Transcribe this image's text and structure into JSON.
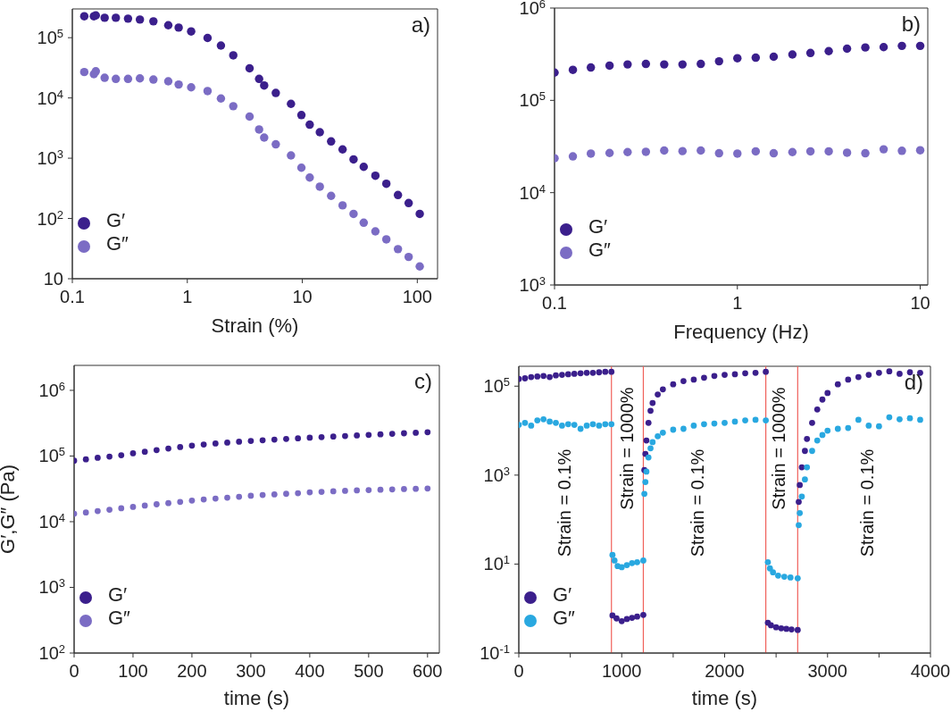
{
  "chart_data": [
    {
      "type": "scatter",
      "xlabel": "Strain (%)",
      "log": "xy",
      "marker": "circle",
      "legend": "bottom left",
      "annotations": [
        "a)"
      ],
      "xlim": [
        0.1,
        150
      ],
      "xticks": [
        0.1,
        1,
        10,
        100
      ],
      "ylim": [
        10,
        300000
      ],
      "yticks": [
        {
          "value": 10,
          "label": "10"
        },
        {
          "value": 100,
          "label": "10$^{2}$"
        },
        {
          "value": 1000,
          "label": "10$^{3}$"
        },
        {
          "value": 10000,
          "label": "10$^{4}$"
        },
        {
          "value": 100000,
          "label": "10$^{5}$"
        }
      ],
      "series": [
        {
          "name": "G′",
          "color": "#3b1f8c",
          "x": [
            0.127,
            0.154,
            0.16,
            0.191,
            0.239,
            0.305,
            0.387,
            0.507,
            0.683,
            0.841,
            1.08,
            1.5,
            1.96,
            2.51,
            3.48,
            4.21,
            4.66,
            5.88,
            7.97,
            9.82,
            11.6,
            14.2,
            17.8,
            22.4,
            27.9,
            34.2,
            43.2,
            53.8,
            67.9,
            84.1,
            105
          ],
          "values": [
            227000,
            227000,
            234000,
            214000,
            214000,
            207000,
            200000,
            187000,
            161000,
            147000,
            127000,
            99000,
            74000,
            51000,
            31000,
            20700,
            16100,
            12100,
            7970,
            5200,
            3600,
            2700,
            1900,
            1400,
            955,
            720,
            512,
            377,
            245,
            180,
            119
          ]
        },
        {
          "name": "G″",
          "color": "#7b6cc4",
          "x": [
            0.127,
            0.154,
            0.16,
            0.191,
            0.239,
            0.305,
            0.387,
            0.507,
            0.683,
            0.841,
            1.08,
            1.5,
            1.96,
            2.51,
            3.48,
            4.21,
            4.66,
            5.88,
            7.97,
            9.82,
            11.6,
            14.2,
            17.8,
            22.4,
            27.9,
            34.2,
            43.2,
            53.8,
            67.9,
            84.1,
            105
          ],
          "values": [
            26900,
            24800,
            27700,
            21600,
            20700,
            20700,
            21100,
            20200,
            18900,
            16700,
            15000,
            13000,
            9800,
            7300,
            4900,
            3000,
            2200,
            1700,
            1110,
            695,
            478,
            337,
            237,
            165,
            119,
            85,
            61,
            45,
            31,
            23,
            16
          ]
        }
      ]
    },
    {
      "type": "scatter",
      "xlabel": "Frequency (Hz)",
      "log": "xy",
      "marker": "circle",
      "legend": "bottom left",
      "annotations": [
        "b)"
      ],
      "xlim": [
        0.1,
        11
      ],
      "xticks": [
        0.1,
        1,
        10
      ],
      "ylim": [
        1000,
        1000000
      ],
      "yticks": [
        {
          "value": 1000,
          "label": "10$^{3}$"
        },
        {
          "value": 10000,
          "label": "10$^{4}$"
        },
        {
          "value": 100000,
          "label": "10$^{5}$"
        },
        {
          "value": 1000000,
          "label": "10$^{6}$"
        }
      ],
      "series": [
        {
          "name": "G′",
          "color": "#3b1f8c",
          "x": [
            0.1,
            0.126,
            0.158,
            0.2,
            0.251,
            0.316,
            0.398,
            0.501,
            0.631,
            0.794,
            1,
            1.26,
            1.58,
            2,
            2.51,
            3.16,
            3.98,
            5.01,
            6.31,
            7.94,
            10
          ],
          "values": [
            200000,
            214000,
            227000,
            238000,
            245000,
            248000,
            245000,
            245000,
            248000,
            265000,
            286000,
            290000,
            297000,
            314000,
            326000,
            341000,
            363000,
            374000,
            377000,
            389000,
            389000
          ]
        },
        {
          "name": "G″",
          "color": "#7b6cc4",
          "x": [
            0.1,
            0.126,
            0.158,
            0.2,
            0.251,
            0.316,
            0.398,
            0.501,
            0.631,
            0.794,
            1,
            1.26,
            1.58,
            2,
            2.51,
            3.16,
            3.98,
            5.01,
            6.31,
            7.94,
            10
          ],
          "values": [
            23600,
            24700,
            26500,
            26900,
            27500,
            27700,
            28600,
            28200,
            28600,
            26700,
            26500,
            28000,
            26700,
            27500,
            28000,
            28000,
            27100,
            26700,
            29500,
            28400,
            28800
          ]
        }
      ]
    },
    {
      "type": "scatter",
      "xlabel": "time (s)",
      "ylabel": "G′,G″ (Pa)",
      "log": "y",
      "marker": "circle",
      "legend": "bottom left",
      "annotations": [
        "c)"
      ],
      "xlim": [
        0,
        620
      ],
      "xticks": [
        0,
        100,
        200,
        300,
        400,
        500,
        600
      ],
      "ylim": [
        100,
        2400000
      ],
      "yticks": [
        {
          "value": 100,
          "label": "10$^{2}$"
        },
        {
          "value": 1000,
          "label": "10$^{3}$"
        },
        {
          "value": 10000,
          "label": "10$^{4}$"
        },
        {
          "value": 100000,
          "label": "10$^{5}$"
        },
        {
          "value": 1000000,
          "label": "10$^{6}$"
        }
      ],
      "series": [
        {
          "name": "G′",
          "color": "#3b1f8c",
          "x": [
            0,
            20,
            40,
            60,
            80,
            100,
            120,
            140,
            160,
            180,
            200,
            220,
            240,
            260,
            280,
            300,
            320,
            340,
            360,
            380,
            400,
            420,
            440,
            460,
            480,
            500,
            520,
            540,
            560,
            580,
            600
          ],
          "values": [
            85000,
            89000,
            94000,
            98000,
            103000,
            110000,
            116000,
            123000,
            130000,
            137000,
            144000,
            150000,
            155000,
            160000,
            165000,
            170000,
            174000,
            178000,
            182000,
            186000,
            190000,
            194000,
            198000,
            202000,
            206000,
            210000,
            214000,
            218000,
            222000,
            226000,
            230000
          ]
        },
        {
          "name": "G″",
          "color": "#7b6cc4",
          "x": [
            0,
            20,
            40,
            60,
            80,
            100,
            120,
            140,
            160,
            180,
            200,
            220,
            240,
            260,
            280,
            300,
            320,
            340,
            360,
            380,
            400,
            420,
            440,
            460,
            480,
            500,
            520,
            540,
            560,
            580,
            600
          ],
          "values": [
            13200,
            13800,
            14500,
            15200,
            16000,
            16800,
            17600,
            18400,
            19200,
            20000,
            21000,
            21800,
            22500,
            23200,
            24000,
            24800,
            25500,
            26000,
            26600,
            27200,
            28000,
            28500,
            29000,
            29500,
            30000,
            30300,
            30700,
            31000,
            31400,
            31700,
            32000
          ]
        }
      ]
    },
    {
      "type": "scatter",
      "xlabel": "time (s)",
      "log": "y",
      "marker": "circle",
      "legend": "bottom left",
      "annotations": [
        "d)",
        "Strain = 0.1%",
        "Strain = 1000%",
        "Strain = 0.1%",
        "Strain = 1000%",
        "Strain = 0.1%"
      ],
      "xlim": [
        0,
        4000
      ],
      "xticks": [
        0,
        {
          "value": 500,
          "label": null
        },
        1000,
        {
          "value": 1500,
          "label": null
        },
        2000,
        {
          "value": 2500,
          "label": null
        },
        3000,
        {
          "value": 3500,
          "label": null
        },
        4000
      ],
      "ylim": [
        0.1,
        280000
      ],
      "yticks": [
        {
          "value": 0.1,
          "label": "10$^{-1}$"
        },
        {
          "value": 10,
          "label": "10$^{1}$"
        },
        {
          "value": 1000,
          "label": "10$^{3}$"
        },
        {
          "value": 100000,
          "label": "10$^{5}$"
        }
      ],
      "ref_lines": [
        {
          "axis": "x",
          "value": 900,
          "color": "#f0605a"
        },
        {
          "axis": "x",
          "value": 1210,
          "color": "#f0605a"
        },
        {
          "axis": "x",
          "value": 2400,
          "color": "#f0605a"
        },
        {
          "axis": "x",
          "value": 2710,
          "color": "#f0605a"
        }
      ],
      "series": [
        {
          "name": "G′",
          "color": "#3b1f8c",
          "x": [
            0,
            60,
            120,
            180,
            240,
            300,
            360,
            420,
            480,
            540,
            600,
            660,
            720,
            780,
            840,
            900,
            910,
            950,
            1000,
            1050,
            1100,
            1150,
            1210,
            1220,
            1230,
            1240,
            1260,
            1280,
            1300,
            1350,
            1400,
            1500,
            1600,
            1700,
            1800,
            1900,
            2000,
            2100,
            2200,
            2300,
            2400,
            2420,
            2450,
            2500,
            2550,
            2600,
            2650,
            2710,
            2720,
            2730,
            2750,
            2780,
            2800,
            2850,
            2900,
            2950,
            3000,
            3100,
            3200,
            3300,
            3400,
            3500,
            3600,
            3700,
            3800,
            3900
          ],
          "values": [
            145000,
            150000,
            160000,
            165000,
            170000,
            160000,
            175000,
            180000,
            185000,
            190000,
            195000,
            200000,
            200000,
            205000,
            210000,
            210000,
            0.7,
            0.6,
            0.52,
            0.58,
            0.62,
            0.66,
            0.72,
            1300,
            3000,
            6000,
            15000,
            28000,
            42000,
            65000,
            85000,
            110000,
            130000,
            140000,
            155000,
            170000,
            180000,
            185000,
            195000,
            200000,
            210000,
            0.48,
            0.42,
            0.38,
            0.36,
            0.35,
            0.34,
            0.33,
            250,
            600,
            1500,
            3500,
            6500,
            15000,
            30000,
            50000,
            70000,
            110000,
            140000,
            160000,
            180000,
            200000,
            215000,
            190000,
            205000,
            200000
          ]
        },
        {
          "name": "G″",
          "color": "#29a8e0",
          "x": [
            0,
            60,
            120,
            180,
            240,
            300,
            360,
            420,
            480,
            540,
            600,
            660,
            720,
            780,
            840,
            900,
            910,
            930,
            960,
            1000,
            1050,
            1100,
            1150,
            1210,
            1220,
            1230,
            1240,
            1260,
            1280,
            1300,
            1350,
            1400,
            1500,
            1600,
            1700,
            1800,
            1900,
            2000,
            2100,
            2200,
            2300,
            2400,
            2420,
            2440,
            2470,
            2520,
            2580,
            2640,
            2710,
            2720,
            2730,
            2750,
            2780,
            2800,
            2850,
            2900,
            2950,
            3000,
            3100,
            3200,
            3300,
            3400,
            3500,
            3600,
            3700,
            3800,
            3900
          ],
          "values": [
            13500,
            15000,
            13000,
            17000,
            18000,
            16000,
            15000,
            13000,
            14000,
            13500,
            11000,
            13000,
            14000,
            13000,
            14000,
            14000,
            16,
            12,
            9,
            8.5,
            9.5,
            10.5,
            11,
            12,
            380,
            700,
            1200,
            2500,
            4000,
            5500,
            7500,
            9000,
            10500,
            11000,
            13000,
            14000,
            14500,
            15000,
            16000,
            17000,
            17500,
            17000,
            11,
            8,
            6.5,
            5.5,
            5.2,
            5,
            4.8,
            75,
            140,
            330,
            800,
            1500,
            3500,
            6000,
            8000,
            10000,
            11000,
            11500,
            17500,
            13000,
            12500,
            20000,
            18000,
            19000,
            17500
          ]
        }
      ]
    }
  ]
}
